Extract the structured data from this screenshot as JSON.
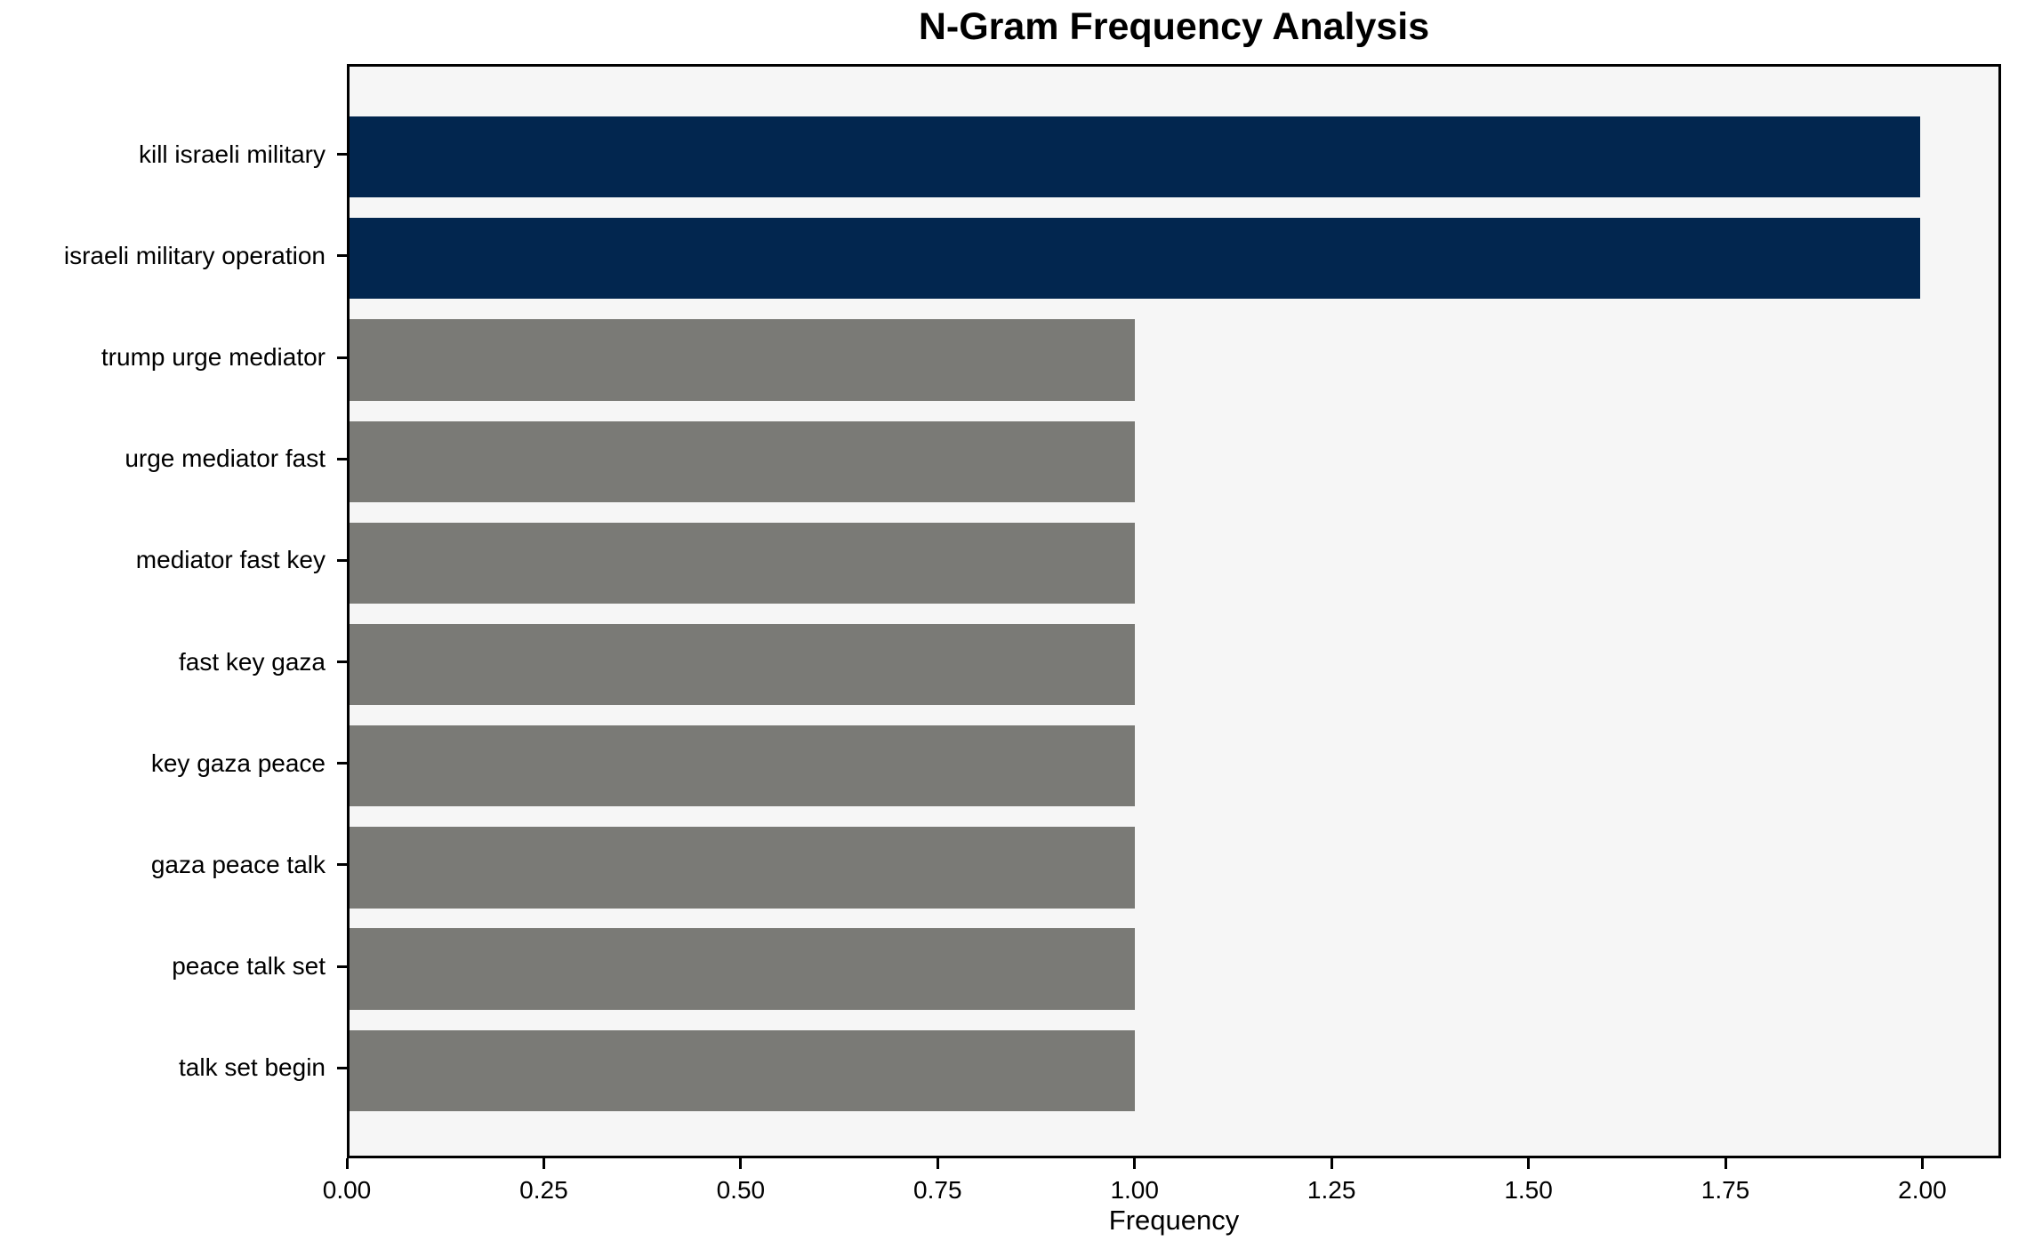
{
  "chart_data": {
    "type": "bar",
    "orientation": "horizontal",
    "title": "N-Gram Frequency Analysis",
    "xlabel": "Frequency",
    "ylabel": "",
    "categories": [
      "kill israeli military",
      "israeli military operation",
      "trump urge mediator",
      "urge mediator fast",
      "mediator fast key",
      "fast key gaza",
      "key gaza peace",
      "gaza peace talk",
      "peace talk set",
      "talk set begin"
    ],
    "values": [
      2,
      2,
      1,
      1,
      1,
      1,
      1,
      1,
      1,
      1
    ],
    "bar_colors": [
      "#02264f",
      "#02264f",
      "#7a7a76",
      "#7a7a76",
      "#7a7a76",
      "#7a7a76",
      "#7a7a76",
      "#7a7a76",
      "#7a7a76",
      "#7a7a76"
    ],
    "xlim": [
      0,
      2.1
    ],
    "xtick_values": [
      0,
      0.25,
      0.5,
      0.75,
      1.0,
      1.25,
      1.5,
      1.75,
      2.0
    ],
    "xtick_labels": [
      "0.00",
      "0.25",
      "0.50",
      "0.75",
      "1.00",
      "1.25",
      "1.50",
      "1.75",
      "2.00"
    ],
    "grid": false,
    "legend": null,
    "bar_height_fraction": 0.8,
    "colors": {
      "highlight": "#02264f",
      "default": "#7a7a76",
      "plot_background": "#f6f6f6",
      "frame": "#000000",
      "text": "#000000",
      "figure_background": "#ffffff"
    }
  }
}
